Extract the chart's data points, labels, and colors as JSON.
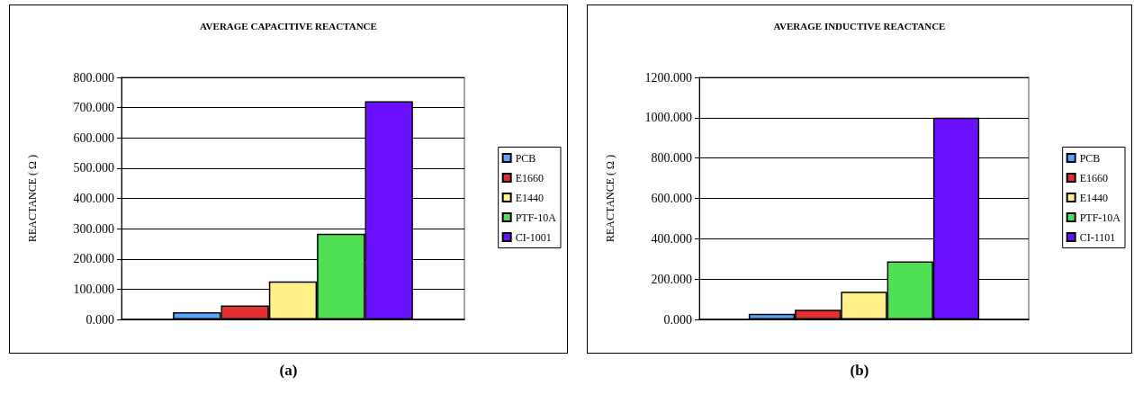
{
  "chart_data": [
    {
      "type": "bar",
      "title": "AVERAGE CAPACITIVE REACTANCE",
      "ylabel": "REACTANCE ( Ω )",
      "categories": [
        null
      ],
      "series": [
        {
          "name": "PCB",
          "color": "#5aa5ff",
          "values": [
            24
          ]
        },
        {
          "name": "E1660",
          "color": "#e03030",
          "values": [
            46
          ]
        },
        {
          "name": "E1440",
          "color": "#fff08a",
          "values": [
            126
          ]
        },
        {
          "name": "PTF-10A",
          "color": "#50e055",
          "values": [
            283
          ]
        },
        {
          "name": "CI-1001",
          "color": "#6a10ff",
          "values": [
            721
          ]
        }
      ],
      "ylim": [
        0,
        800
      ],
      "yticks": [
        {
          "value": 0,
          "label": "0.000"
        },
        {
          "value": 100,
          "label": "100.000"
        },
        {
          "value": 200,
          "label": "200.000"
        },
        {
          "value": 300,
          "label": "300.000"
        },
        {
          "value": 400,
          "label": "400.000"
        },
        {
          "value": 500,
          "label": "500.000"
        },
        {
          "value": 600,
          "label": "600.000"
        },
        {
          "value": 700,
          "label": "700.000"
        },
        {
          "value": 800,
          "label": "800.000"
        }
      ],
      "grid": "y",
      "legend": "right",
      "annotations": [
        "(a)"
      ]
    },
    {
      "type": "bar",
      "title": "AVERAGE INDUCTIVE REACTANCE",
      "ylabel": "REACTANCE ( Ω )",
      "categories": [
        null
      ],
      "series": [
        {
          "name": "PCB",
          "color": "#5aa5ff",
          "values": [
            28
          ]
        },
        {
          "name": "E1660",
          "color": "#e03030",
          "values": [
            48
          ]
        },
        {
          "name": "E1440",
          "color": "#fff08a",
          "values": [
            137
          ]
        },
        {
          "name": "PTF-10A",
          "color": "#50e055",
          "values": [
            288
          ]
        },
        {
          "name": "CI-1101",
          "color": "#6a10ff",
          "values": [
            1000
          ]
        }
      ],
      "ylim": [
        0,
        1200
      ],
      "yticks": [
        {
          "value": 0,
          "label": "0.000"
        },
        {
          "value": 200,
          "label": "200.000"
        },
        {
          "value": 400,
          "label": "400.000"
        },
        {
          "value": 600,
          "label": "600.000"
        },
        {
          "value": 800,
          "label": "800.000"
        },
        {
          "value": 1000,
          "label": "1000.000"
        },
        {
          "value": 1200,
          "label": "1200.000"
        }
      ],
      "grid": "y",
      "legend": "right",
      "annotations": [
        "(b)"
      ]
    }
  ]
}
